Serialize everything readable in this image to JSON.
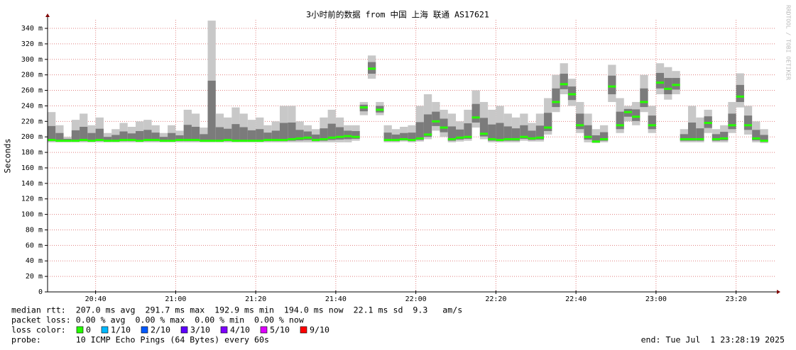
{
  "chart_data": {
    "type": "smokeping",
    "title": "3小时前的数据 from 中国 上海 联通 AS17621",
    "y_label": "Seconds",
    "side_label": "RRDTOOL / TOBI OETIKER",
    "xlim": [
      "20:28",
      "23:30"
    ],
    "xticks": [
      "20:40",
      "21:00",
      "21:20",
      "21:40",
      "22:00",
      "22:20",
      "22:40",
      "23:00",
      "23:20"
    ],
    "ylim": [
      0,
      0.351
    ],
    "yticks": [
      0,
      {
        "value": 0.02,
        "label": "20 m"
      },
      {
        "value": 0.04,
        "label": "40 m"
      },
      {
        "value": 0.06,
        "label": "60 m"
      },
      {
        "value": 0.08,
        "label": "80 m"
      },
      {
        "value": 0.1,
        "label": "100 m"
      },
      {
        "value": 0.12,
        "label": "120 m"
      },
      {
        "value": 0.14,
        "label": "140 m"
      },
      {
        "value": 0.16,
        "label": "160 m"
      },
      {
        "value": 0.18,
        "label": "180 m"
      },
      {
        "value": 0.2,
        "label": "200 m"
      },
      {
        "value": 0.22,
        "label": "220 m"
      },
      {
        "value": 0.24,
        "label": "240 m"
      },
      {
        "value": 0.26,
        "label": "260 m"
      },
      {
        "value": 0.28,
        "label": "280 m"
      },
      {
        "value": 0.3,
        "label": "300 m"
      },
      {
        "value": 0.32,
        "label": "320 m"
      },
      {
        "value": 0.34,
        "label": "340 m"
      }
    ],
    "grid": true,
    "grid_color": "#e08080",
    "smoke_color": "#c8c8c8",
    "smoke_core_color": "#5a5a5a",
    "median_color": "#26ff00",
    "x": [
      "20:29",
      "20:31",
      "20:33",
      "20:35",
      "20:37",
      "20:39",
      "20:41",
      "20:43",
      "20:45",
      "20:47",
      "20:49",
      "20:51",
      "20:53",
      "20:55",
      "20:57",
      "20:59",
      "21:01",
      "21:03",
      "21:05",
      "21:07",
      "21:09",
      "21:11",
      "21:13",
      "21:15",
      "21:17",
      "21:19",
      "21:21",
      "21:23",
      "21:25",
      "21:27",
      "21:29",
      "21:31",
      "21:33",
      "21:35",
      "21:37",
      "21:39",
      "21:41",
      "21:43",
      "21:45",
      "21:47",
      "21:49",
      "21:51",
      "21:53",
      "21:55",
      "21:57",
      "21:59",
      "22:01",
      "22:03",
      "22:05",
      "22:07",
      "22:09",
      "22:11",
      "22:13",
      "22:15",
      "22:17",
      "22:19",
      "22:21",
      "22:23",
      "22:25",
      "22:27",
      "22:29",
      "22:31",
      "22:33",
      "22:35",
      "22:37",
      "22:39",
      "22:41",
      "22:43",
      "22:45",
      "22:47",
      "22:49",
      "22:51",
      "22:53",
      "22:55",
      "22:57",
      "22:59",
      "23:01",
      "23:03",
      "23:05",
      "23:07",
      "23:09",
      "23:11",
      "23:13",
      "23:15",
      "23:17",
      "23:19",
      "23:21",
      "23:23",
      "23:25",
      "23:27"
    ],
    "median": [
      0.196,
      0.195,
      0.195,
      0.195,
      0.196,
      0.195,
      0.196,
      0.195,
      0.195,
      0.196,
      0.196,
      0.195,
      0.196,
      0.196,
      0.195,
      0.195,
      0.196,
      0.196,
      0.196,
      0.195,
      0.195,
      0.195,
      0.196,
      0.195,
      0.195,
      0.195,
      0.195,
      0.196,
      0.196,
      0.196,
      0.197,
      0.198,
      0.199,
      0.196,
      0.197,
      0.199,
      0.2,
      0.201,
      0.2,
      0.238,
      0.288,
      0.235,
      0.196,
      0.196,
      0.197,
      0.196,
      0.198,
      0.203,
      0.22,
      0.212,
      0.197,
      0.199,
      0.2,
      0.225,
      0.204,
      0.197,
      0.196,
      0.197,
      0.197,
      0.2,
      0.198,
      0.199,
      0.212,
      0.245,
      0.268,
      0.255,
      0.215,
      0.2,
      0.194,
      0.197,
      0.265,
      0.215,
      0.232,
      0.226,
      0.245,
      0.215,
      0.27,
      0.262,
      0.267,
      0.197,
      0.197,
      0.197,
      0.218,
      0.197,
      0.198,
      0.215,
      0.252,
      0.215,
      0.198,
      0.195
    ],
    "smoke_min": [
      0.193,
      0.193,
      0.193,
      0.193,
      0.193,
      0.193,
      0.193,
      0.193,
      0.193,
      0.193,
      0.193,
      0.193,
      0.193,
      0.193,
      0.193,
      0.193,
      0.193,
      0.193,
      0.193,
      0.193,
      0.193,
      0.193,
      0.193,
      0.193,
      0.193,
      0.193,
      0.193,
      0.193,
      0.193,
      0.193,
      0.193,
      0.193,
      0.193,
      0.193,
      0.193,
      0.193,
      0.193,
      0.193,
      0.195,
      0.228,
      0.275,
      0.228,
      0.193,
      0.193,
      0.194,
      0.193,
      0.194,
      0.197,
      0.208,
      0.2,
      0.193,
      0.194,
      0.195,
      0.212,
      0.197,
      0.193,
      0.193,
      0.193,
      0.193,
      0.195,
      0.194,
      0.194,
      0.203,
      0.232,
      0.255,
      0.24,
      0.205,
      0.193,
      0.192,
      0.193,
      0.245,
      0.205,
      0.22,
      0.215,
      0.232,
      0.205,
      0.255,
      0.248,
      0.255,
      0.193,
      0.193,
      0.193,
      0.205,
      0.193,
      0.193,
      0.205,
      0.238,
      0.203,
      0.193,
      0.192
    ],
    "smoke_max": [
      0.232,
      0.215,
      0.2,
      0.222,
      0.23,
      0.215,
      0.225,
      0.205,
      0.21,
      0.218,
      0.213,
      0.22,
      0.222,
      0.215,
      0.205,
      0.215,
      0.208,
      0.235,
      0.23,
      0.212,
      0.35,
      0.23,
      0.225,
      0.238,
      0.23,
      0.222,
      0.225,
      0.215,
      0.22,
      0.24,
      0.24,
      0.22,
      0.215,
      0.21,
      0.225,
      0.235,
      0.225,
      0.215,
      0.215,
      0.245,
      0.305,
      0.245,
      0.215,
      0.21,
      0.213,
      0.215,
      0.24,
      0.255,
      0.245,
      0.235,
      0.23,
      0.22,
      0.235,
      0.26,
      0.245,
      0.235,
      0.24,
      0.23,
      0.225,
      0.23,
      0.218,
      0.23,
      0.25,
      0.28,
      0.295,
      0.275,
      0.245,
      0.23,
      0.21,
      0.215,
      0.293,
      0.25,
      0.24,
      0.245,
      0.28,
      0.24,
      0.295,
      0.29,
      0.285,
      0.21,
      0.24,
      0.225,
      0.235,
      0.21,
      0.215,
      0.245,
      0.282,
      0.24,
      0.22,
      0.21
    ],
    "stats": [
      "median rtt:  207.0 ms avg  291.7 ms max  192.9 ms min  194.0 ms now  22.1 ms sd  9.3   am/s",
      "packet loss: 0.00 % avg  0.00 % max  0.00 % min  0.00 % now"
    ],
    "loss_color_label": "loss color:",
    "loss_colors": [
      {
        "label": "0",
        "color": "#26ff00"
      },
      {
        "label": "1/10",
        "color": "#00b8ff"
      },
      {
        "label": "2/10",
        "color": "#0059ff"
      },
      {
        "label": "3/10",
        "color": "#5e00ff"
      },
      {
        "label": "4/10",
        "color": "#7e00ff"
      },
      {
        "label": "5/10",
        "color": "#dd00ff"
      },
      {
        "label": "9/10",
        "color": "#ff0000"
      }
    ],
    "probe": "probe:       10 ICMP Echo Pings (64 Bytes) every 60s",
    "end": "end: Tue Jul  1 23:28:19 2025"
  }
}
